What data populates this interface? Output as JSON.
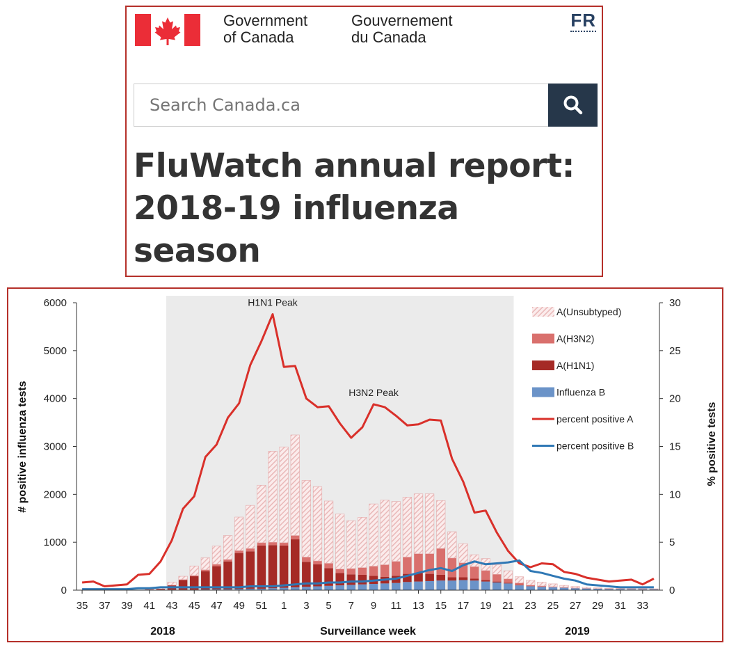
{
  "header": {
    "wordmark_en": [
      "Government",
      "of Canada"
    ],
    "wordmark_fr": [
      "Gouvernement",
      "du Canada"
    ],
    "lang_toggle": "FR",
    "search_placeholder": "Search Canada.ca",
    "page_title": "FluWatch annual report: 2018-19 influenza season",
    "flag_red": "#eb2d37"
  },
  "chart_data": {
    "type": "bar",
    "stacked": true,
    "xlabel": "Surveillance  week",
    "ylabel_left": "# positive influenza tests",
    "ylabel_right": "% positive tests",
    "ylim_left": [
      0,
      6000
    ],
    "ylim_right": [
      0,
      30
    ],
    "yticks_left": [
      0,
      1000,
      2000,
      3000,
      4000,
      5000,
      6000
    ],
    "yticks_right": [
      0,
      5,
      10,
      15,
      20,
      25,
      30
    ],
    "x_tick_labels": [
      "35",
      "37",
      "39",
      "41",
      "43",
      "45",
      "47",
      "49",
      "51",
      "1",
      "3",
      "5",
      "7",
      "9",
      "11",
      "13",
      "15",
      "17",
      "19",
      "21",
      "23",
      "25",
      "27",
      "29",
      "31",
      "33"
    ],
    "year_labels": [
      "2018",
      "2019"
    ],
    "weeks": [
      "35",
      "36",
      "37",
      "38",
      "39",
      "40",
      "41",
      "42",
      "43",
      "44",
      "45",
      "46",
      "47",
      "48",
      "49",
      "50",
      "51",
      "52",
      "1",
      "2",
      "3",
      "4",
      "5",
      "6",
      "7",
      "8",
      "9",
      "10",
      "11",
      "12",
      "13",
      "14",
      "15",
      "16",
      "17",
      "18",
      "19",
      "20",
      "21",
      "22",
      "23",
      "24",
      "25",
      "26",
      "27",
      "28",
      "29",
      "30",
      "31",
      "32",
      "33",
      "34"
    ],
    "annotations": [
      "H1N1 Peak",
      "H3N2 Peak"
    ],
    "shaded_region": {
      "from_week": "43",
      "to_week": "21"
    },
    "colors": {
      "unsubtyped": "#e9b8b8",
      "h3n2": "#d9706d",
      "h1n1": "#a52a26",
      "b": "#6b93c8",
      "line_a": "#d9302a",
      "line_b": "#2f78b5",
      "shade": "#ebebeb"
    },
    "series": [
      {
        "name": "A(Unsubtyped)",
        "kind": "bar",
        "values": [
          0,
          0,
          0,
          0,
          0,
          0,
          20,
          30,
          60,
          70,
          200,
          250,
          380,
          500,
          700,
          900,
          1200,
          1900,
          2000,
          2100,
          1600,
          1550,
          1300,
          1150,
          1000,
          1050,
          1300,
          1350,
          1250,
          1250,
          1250,
          1250,
          1000,
          550,
          400,
          250,
          250,
          200,
          170,
          130,
          100,
          80,
          60,
          40,
          30,
          20,
          15,
          10,
          10,
          10,
          10,
          5
        ]
      },
      {
        "name": "A(H3N2)",
        "kind": "bar",
        "values": [
          0,
          0,
          0,
          0,
          0,
          0,
          0,
          0,
          5,
          10,
          15,
          30,
          40,
          40,
          50,
          60,
          60,
          60,
          60,
          80,
          100,
          70,
          100,
          80,
          120,
          150,
          200,
          250,
          300,
          350,
          400,
          420,
          550,
          400,
          300,
          250,
          200,
          150,
          80,
          40,
          20,
          15,
          10,
          8,
          5,
          3,
          2,
          2,
          2,
          2,
          2,
          2
        ]
      },
      {
        "name": "A(H1N1)",
        "kind": "bar",
        "values": [
          0,
          0,
          0,
          0,
          0,
          0,
          10,
          20,
          90,
          200,
          280,
          380,
          480,
          580,
          750,
          780,
          900,
          900,
          880,
          1000,
          520,
          460,
          370,
          260,
          220,
          200,
          170,
          140,
          150,
          170,
          180,
          150,
          120,
          70,
          60,
          40,
          30,
          20,
          15,
          10,
          5,
          3,
          2,
          2,
          2,
          1,
          1,
          1,
          1,
          1,
          1,
          1
        ]
      },
      {
        "name": "Influenza B",
        "kind": "bar",
        "values": [
          0,
          0,
          0,
          0,
          0,
          0,
          5,
          5,
          10,
          10,
          10,
          15,
          20,
          20,
          25,
          30,
          30,
          40,
          50,
          60,
          70,
          80,
          90,
          100,
          110,
          120,
          130,
          140,
          150,
          170,
          180,
          190,
          200,
          200,
          210,
          200,
          180,
          160,
          140,
          100,
          80,
          70,
          60,
          50,
          40,
          35,
          30,
          25,
          25,
          20,
          20,
          20
        ]
      },
      {
        "name": "percent positive A",
        "kind": "line",
        "axis": "right",
        "values": [
          0.8,
          0.9,
          0.4,
          0.5,
          0.6,
          1.6,
          1.7,
          3.0,
          5.2,
          8.5,
          9.8,
          13.9,
          15.2,
          18.0,
          19.5,
          23.5,
          26.0,
          28.8,
          23.3,
          23.4,
          20.0,
          19.1,
          19.2,
          17.4,
          15.9,
          17.0,
          19.4,
          19.1,
          18.2,
          17.2,
          17.3,
          17.8,
          17.7,
          13.7,
          11.3,
          8.1,
          8.3,
          6.0,
          4.1,
          2.8,
          2.4,
          2.8,
          2.7,
          1.9,
          1.7,
          1.3,
          1.1,
          0.9,
          1.0,
          1.1,
          0.6,
          1.2
        ]
      },
      {
        "name": "percent positive B",
        "kind": "line",
        "axis": "right",
        "values": [
          0.1,
          0.1,
          0.1,
          0.1,
          0.1,
          0.2,
          0.2,
          0.3,
          0.3,
          0.3,
          0.3,
          0.3,
          0.3,
          0.3,
          0.3,
          0.4,
          0.4,
          0.4,
          0.5,
          0.6,
          0.7,
          0.7,
          0.8,
          0.8,
          0.9,
          0.9,
          1.0,
          1.1,
          1.2,
          1.5,
          1.8,
          2.1,
          2.3,
          2.0,
          2.6,
          3.0,
          2.7,
          2.8,
          2.9,
          3.1,
          2.0,
          1.8,
          1.5,
          1.2,
          1.0,
          0.6,
          0.5,
          0.4,
          0.3,
          0.3,
          0.3,
          0.3
        ]
      }
    ]
  }
}
